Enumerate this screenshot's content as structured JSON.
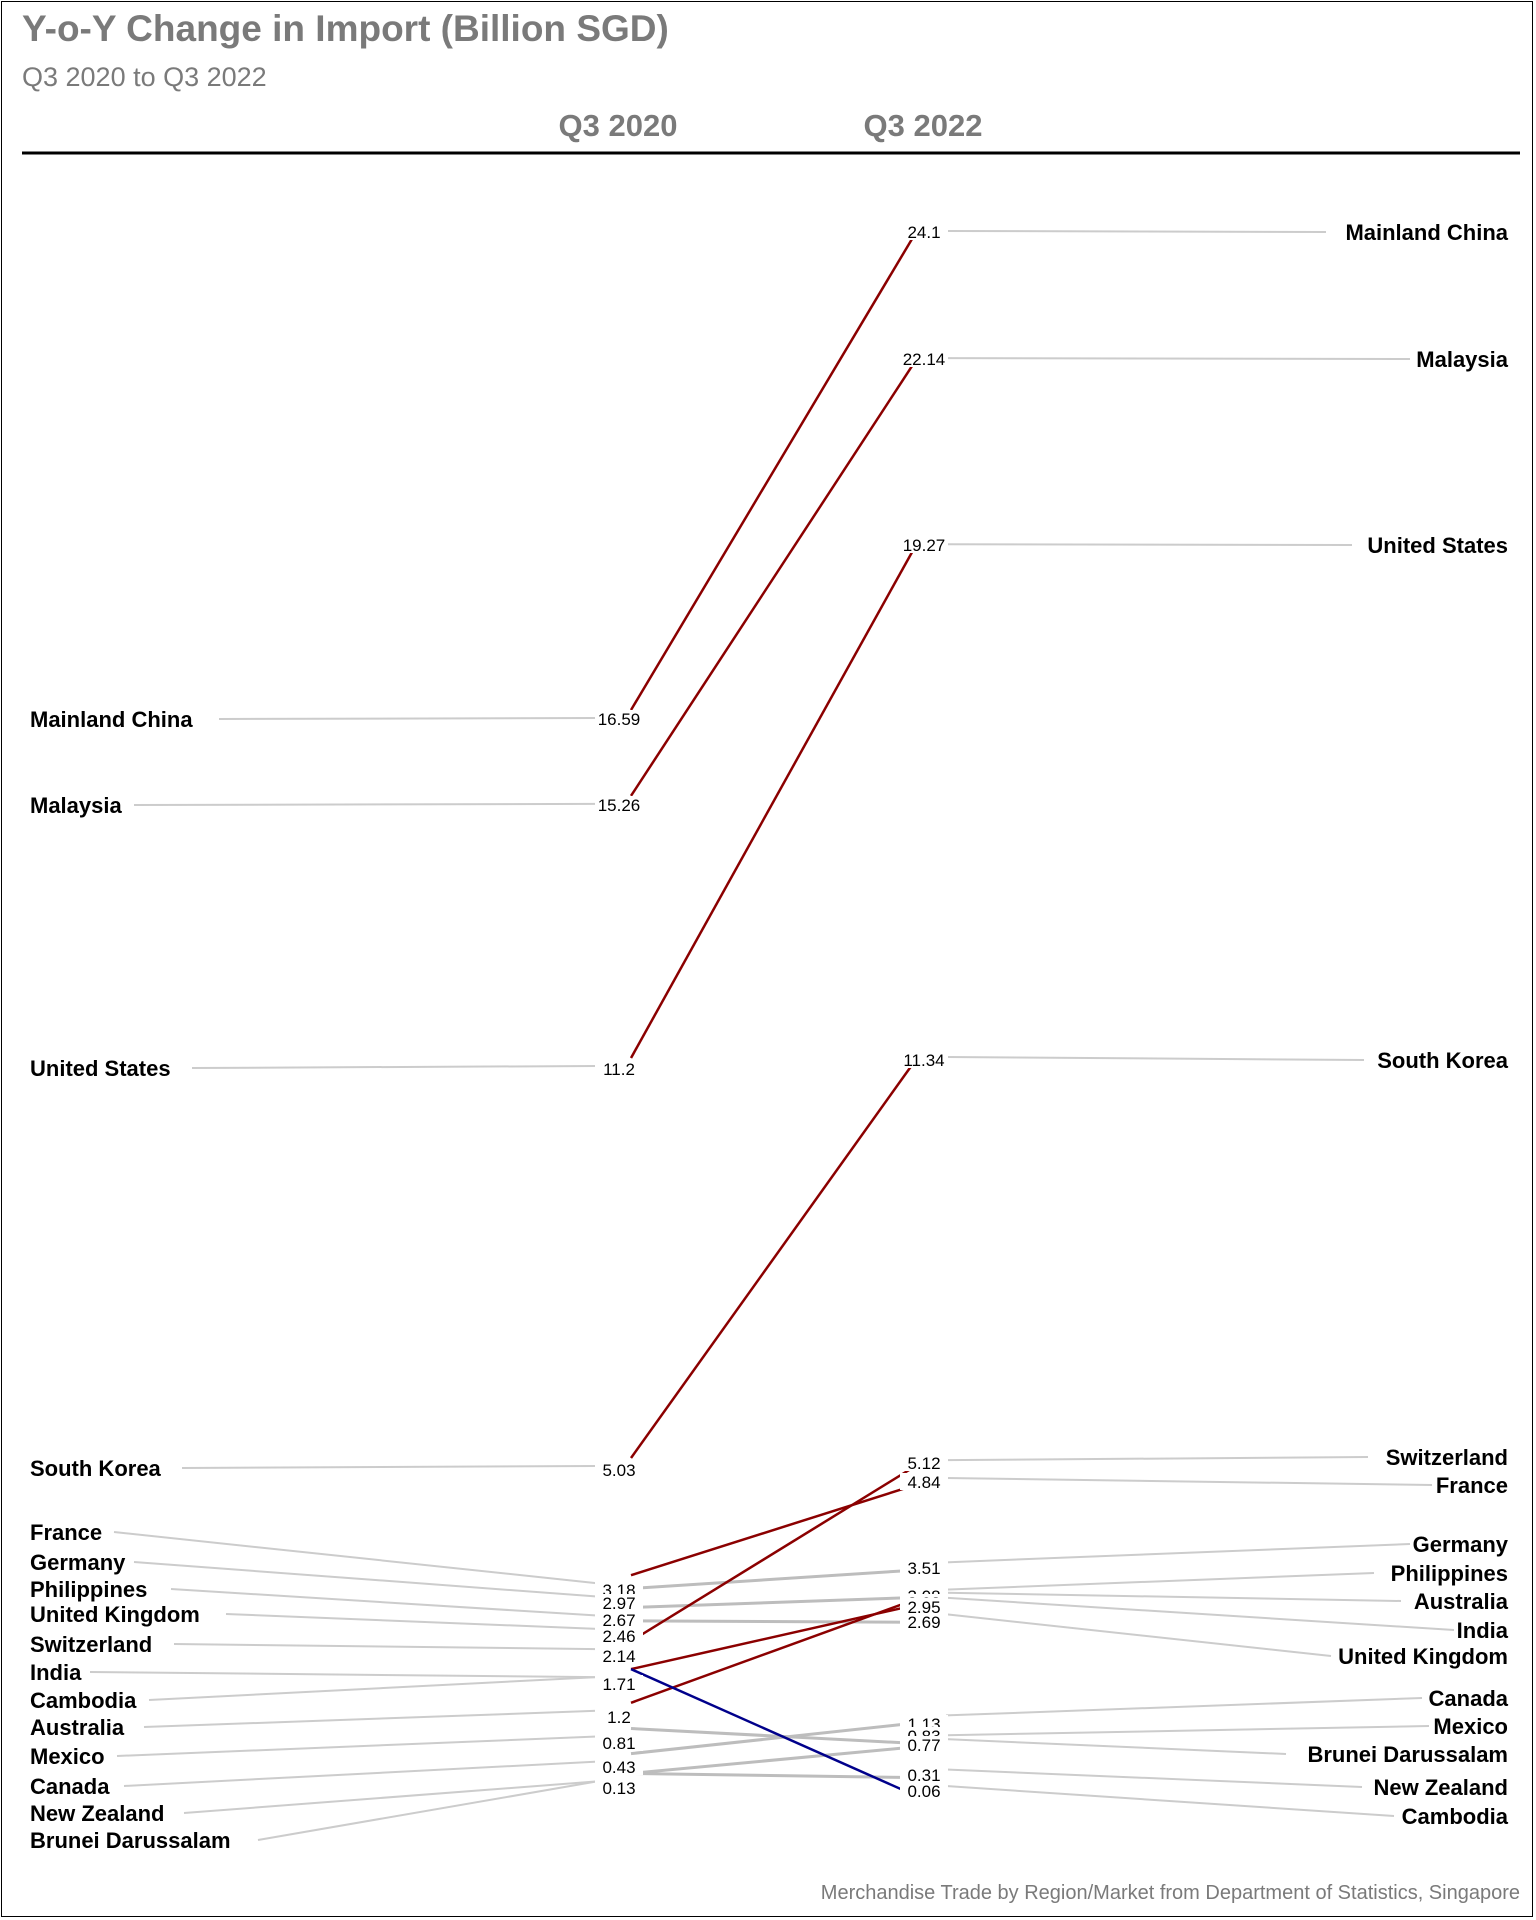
{
  "chart_data": {
    "type": "slope",
    "title": "Y-o-Y Change in Import (Billion SGD)",
    "subtitle": "Q3 2020 to Q3 2022",
    "columns": [
      "Q3 2020",
      "Q3 2022"
    ],
    "source": "Merchandise Trade by Region/Market from Department of Statistics, Singapore",
    "colors": {
      "increase_large": "#8b0000",
      "decrease_large": "#00008b",
      "minor": "#bdbdbd",
      "leader": "#cccccc"
    },
    "series": [
      {
        "name": "Mainland China",
        "q3_2020": 16.59,
        "q3_2022": 24.1,
        "trend": "increase_large"
      },
      {
        "name": "Malaysia",
        "q3_2020": 15.26,
        "q3_2022": 22.14,
        "trend": "increase_large"
      },
      {
        "name": "United States",
        "q3_2020": 11.2,
        "q3_2022": 19.27,
        "trend": "increase_large"
      },
      {
        "name": "South Korea",
        "q3_2020": 5.03,
        "q3_2022": 11.34,
        "trend": "increase_large"
      },
      {
        "name": "France",
        "q3_2020": 3.18,
        "q3_2022": 4.84,
        "trend": "increase_large"
      },
      {
        "name": "Germany",
        "q3_2020": 2.97,
        "q3_2022": 3.51,
        "trend": "minor"
      },
      {
        "name": "Philippines",
        "q3_2020": 2.67,
        "q3_2022": 3.08,
        "trend": "minor"
      },
      {
        "name": "United Kingdom",
        "q3_2020": 2.46,
        "q3_2022": 2.69,
        "trend": "minor"
      },
      {
        "name": "Switzerland",
        "q3_2020": 2.14,
        "q3_2022": 5.12,
        "trend": "increase_large"
      },
      {
        "name": "India",
        "q3_2020": 1.71,
        "q3_2022": 2.95,
        "trend": "increase_large"
      },
      {
        "name": "Australia",
        "q3_2020": 1.2,
        "q3_2022": 3.03,
        "trend": "increase_large"
      },
      {
        "name": "Cambodia",
        "q3_2020": 1.71,
        "q3_2022": 0.06,
        "trend": "decrease_large"
      },
      {
        "name": "Mexico",
        "q3_2020": 0.81,
        "q3_2022": 0.83,
        "trend": "minor"
      },
      {
        "name": "Canada",
        "q3_2020": 0.43,
        "q3_2022": 1.13,
        "trend": "minor"
      },
      {
        "name": "Brunei Darussalam",
        "q3_2020": 0.13,
        "q3_2022": 0.77,
        "trend": "minor"
      },
      {
        "name": "New Zealand",
        "q3_2020": 0.13,
        "q3_2022": 0.31,
        "trend": "minor"
      }
    ],
    "left_labels": [
      "Mainland China",
      "Malaysia",
      "United States",
      "South Korea",
      "France",
      "Germany",
      "Philippines",
      "United Kingdom",
      "Switzerland",
      "India",
      "Cambodia",
      "Australia",
      "Mexico",
      "Canada",
      "New Zealand",
      "Brunei Darussalam"
    ],
    "right_labels": [
      "Mainland China",
      "Malaysia",
      "United States",
      "South Korea",
      "Switzerland",
      "France",
      "Germany",
      "Philippines",
      "Australia",
      "India",
      "United Kingdom",
      "Canada",
      "Mexico",
      "Brunei Darussalam",
      "New Zealand",
      "Cambodia"
    ],
    "left_values": [
      "16.59",
      "15.26",
      "11.2",
      "5.03",
      "3.18",
      "2.97",
      "2.67",
      "2.46",
      "2.14",
      "1.71",
      "1.2",
      "0.81",
      "0.43",
      "0.13"
    ],
    "right_values": [
      "24.1",
      "22.14",
      "19.27",
      "11.34",
      "5.12",
      "4.84",
      "3.51",
      "3.08",
      "3.03",
      "2.95",
      "2.69",
      "1.13",
      "0.83",
      "0.77",
      "0.31",
      "0.06"
    ]
  }
}
